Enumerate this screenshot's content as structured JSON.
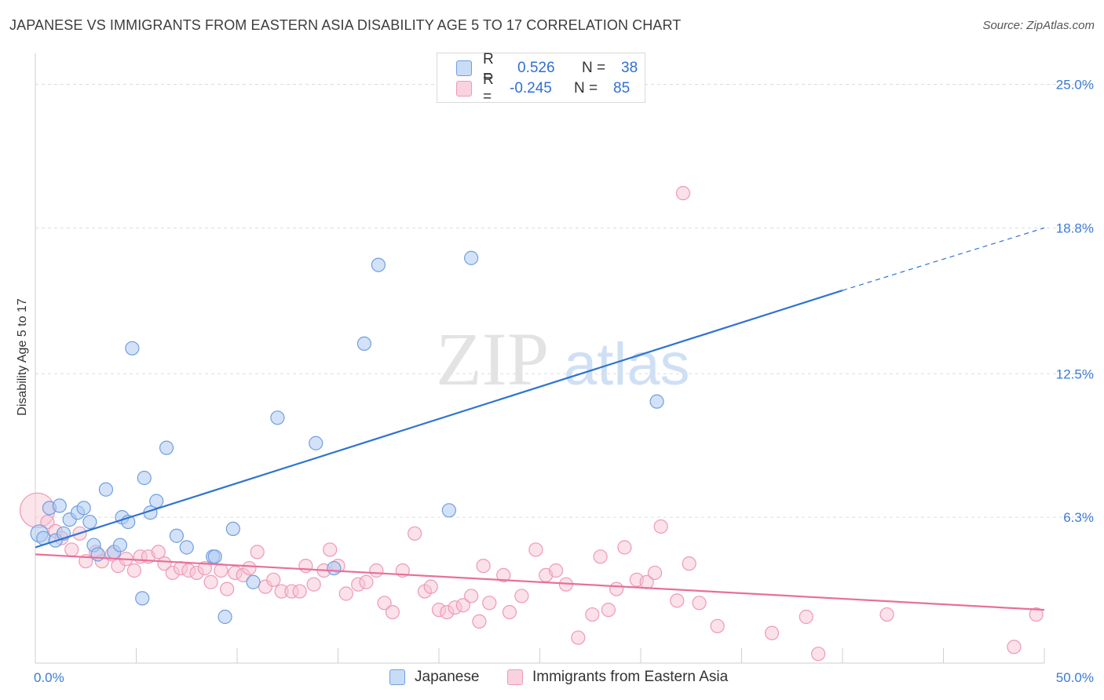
{
  "header": {
    "title": "JAPANESE VS IMMIGRANTS FROM EASTERN ASIA DISABILITY AGE 5 TO 17 CORRELATION CHART",
    "source": "Source: ZipAtlas.com"
  },
  "watermark": {
    "zip": "ZIP",
    "atlas": "atlas"
  },
  "legend": {
    "rows": [
      {
        "r_label": "R =",
        "r_value": "0.526",
        "n_label": "N =",
        "n_value": "38"
      },
      {
        "r_label": "R =",
        "r_value": "-0.245",
        "n_label": "N =",
        "n_value": "85"
      }
    ]
  },
  "bottom_legend": {
    "series_a": "Japanese",
    "series_b": "Immigrants from Eastern Asia"
  },
  "colors": {
    "japanese_fill": "#aecbf2",
    "japanese_stroke": "#6f9fe0",
    "japanese_line": "#2f74d0",
    "immigrants_fill": "#f8c3d3",
    "immigrants_stroke": "#ee9ab5",
    "immigrants_line": "#e8709a",
    "axis_label": "#3a7bd5",
    "grid": "#dddddd"
  },
  "chart_data": {
    "type": "scatter",
    "title": "JAPANESE VS IMMIGRANTS FROM EASTERN ASIA DISABILITY AGE 5 TO 17 CORRELATION CHART",
    "xlabel": "",
    "ylabel": "Disability Age 5 to 17",
    "xlim": [
      0,
      50
    ],
    "ylim": [
      0,
      26
    ],
    "x_tick_labels": [
      "0.0%",
      "50.0%"
    ],
    "y_tick_labels": [
      "6.3%",
      "12.5%",
      "18.8%",
      "25.0%"
    ],
    "y_ticks": [
      6.3,
      12.5,
      18.8,
      25.0
    ],
    "x_minor_ticks": [
      0,
      5,
      10,
      15,
      20,
      25,
      30,
      35,
      40,
      45,
      50
    ],
    "grid": true,
    "legend_placement": "top-center",
    "series": [
      {
        "name": "Japanese",
        "r": 0.526,
        "n": 38,
        "trend": {
          "x0": 0,
          "y0": 5.0,
          "x1": 40,
          "y1": 16.1,
          "dashed_to_x": 50,
          "dashed_to_y": 18.8
        },
        "points": [
          [
            0.2,
            5.6
          ],
          [
            0.4,
            5.4
          ],
          [
            0.7,
            6.7
          ],
          [
            1.0,
            5.3
          ],
          [
            1.2,
            6.8
          ],
          [
            1.4,
            5.6
          ],
          [
            1.7,
            6.2
          ],
          [
            2.1,
            6.5
          ],
          [
            2.4,
            6.7
          ],
          [
            2.7,
            6.1
          ],
          [
            2.9,
            5.1
          ],
          [
            3.1,
            4.7
          ],
          [
            3.5,
            7.5
          ],
          [
            3.9,
            4.8
          ],
          [
            4.2,
            5.1
          ],
          [
            4.3,
            6.3
          ],
          [
            4.6,
            6.1
          ],
          [
            4.8,
            13.6
          ],
          [
            5.3,
            2.8
          ],
          [
            5.4,
            8.0
          ],
          [
            5.7,
            6.5
          ],
          [
            6.0,
            7.0
          ],
          [
            6.5,
            9.3
          ],
          [
            7.0,
            5.5
          ],
          [
            7.5,
            5.0
          ],
          [
            8.8,
            4.6
          ],
          [
            8.9,
            4.6
          ],
          [
            9.4,
            2.0
          ],
          [
            9.8,
            5.8
          ],
          [
            10.8,
            3.5
          ],
          [
            12.0,
            10.6
          ],
          [
            13.9,
            9.5
          ],
          [
            14.8,
            4.1
          ],
          [
            16.3,
            13.8
          ],
          [
            17.0,
            17.2
          ],
          [
            20.5,
            6.6
          ],
          [
            21.6,
            17.5
          ],
          [
            30.8,
            11.3
          ]
        ]
      },
      {
        "name": "Immigrants from Eastern Asia",
        "r": -0.245,
        "n": 85,
        "trend": {
          "x0": 0,
          "y0": 4.7,
          "x1": 50,
          "y1": 2.3
        },
        "points": [
          [
            0.1,
            6.6
          ],
          [
            0.6,
            6.1
          ],
          [
            1.0,
            5.7
          ],
          [
            1.3,
            5.4
          ],
          [
            1.8,
            4.9
          ],
          [
            2.2,
            5.6
          ],
          [
            2.5,
            4.4
          ],
          [
            3.0,
            4.8
          ],
          [
            3.3,
            4.4
          ],
          [
            3.8,
            4.7
          ],
          [
            4.1,
            4.2
          ],
          [
            4.5,
            4.5
          ],
          [
            4.9,
            4.0
          ],
          [
            5.2,
            4.6
          ],
          [
            5.6,
            4.6
          ],
          [
            6.1,
            4.8
          ],
          [
            6.4,
            4.3
          ],
          [
            6.8,
            3.9
          ],
          [
            7.2,
            4.1
          ],
          [
            7.6,
            4.0
          ],
          [
            8.0,
            3.9
          ],
          [
            8.4,
            4.1
          ],
          [
            8.7,
            3.5
          ],
          [
            9.2,
            4.0
          ],
          [
            9.5,
            3.2
          ],
          [
            9.9,
            3.9
          ],
          [
            10.3,
            3.8
          ],
          [
            10.6,
            4.1
          ],
          [
            11.0,
            4.8
          ],
          [
            11.4,
            3.3
          ],
          [
            11.8,
            3.6
          ],
          [
            12.2,
            3.1
          ],
          [
            12.7,
            3.1
          ],
          [
            13.1,
            3.1
          ],
          [
            13.4,
            4.2
          ],
          [
            13.8,
            3.4
          ],
          [
            14.3,
            4.0
          ],
          [
            14.6,
            4.9
          ],
          [
            15.0,
            4.2
          ],
          [
            15.4,
            3.0
          ],
          [
            16.0,
            3.4
          ],
          [
            16.4,
            3.5
          ],
          [
            16.9,
            4.0
          ],
          [
            17.3,
            2.6
          ],
          [
            17.7,
            2.2
          ],
          [
            18.2,
            4.0
          ],
          [
            18.8,
            5.6
          ],
          [
            19.3,
            3.1
          ],
          [
            19.6,
            3.3
          ],
          [
            20.0,
            2.3
          ],
          [
            20.4,
            2.2
          ],
          [
            20.8,
            2.4
          ],
          [
            21.2,
            2.5
          ],
          [
            21.6,
            2.9
          ],
          [
            22.0,
            1.8
          ],
          [
            22.2,
            4.2
          ],
          [
            22.5,
            2.6
          ],
          [
            23.2,
            3.8
          ],
          [
            23.5,
            2.2
          ],
          [
            24.1,
            2.9
          ],
          [
            24.8,
            4.9
          ],
          [
            25.3,
            3.8
          ],
          [
            25.8,
            4.0
          ],
          [
            26.3,
            3.4
          ],
          [
            26.9,
            1.1
          ],
          [
            27.6,
            2.1
          ],
          [
            28.0,
            4.6
          ],
          [
            28.4,
            2.3
          ],
          [
            28.8,
            3.2
          ],
          [
            29.2,
            5.0
          ],
          [
            29.8,
            3.6
          ],
          [
            30.3,
            3.5
          ],
          [
            30.7,
            3.9
          ],
          [
            31.0,
            5.9
          ],
          [
            31.8,
            2.7
          ],
          [
            32.1,
            20.3
          ],
          [
            32.4,
            4.3
          ],
          [
            32.9,
            2.6
          ],
          [
            33.8,
            1.6
          ],
          [
            36.5,
            1.3
          ],
          [
            38.2,
            2.0
          ],
          [
            38.8,
            0.4
          ],
          [
            42.2,
            2.1
          ],
          [
            48.5,
            0.7
          ],
          [
            49.6,
            2.1
          ]
        ]
      }
    ]
  }
}
